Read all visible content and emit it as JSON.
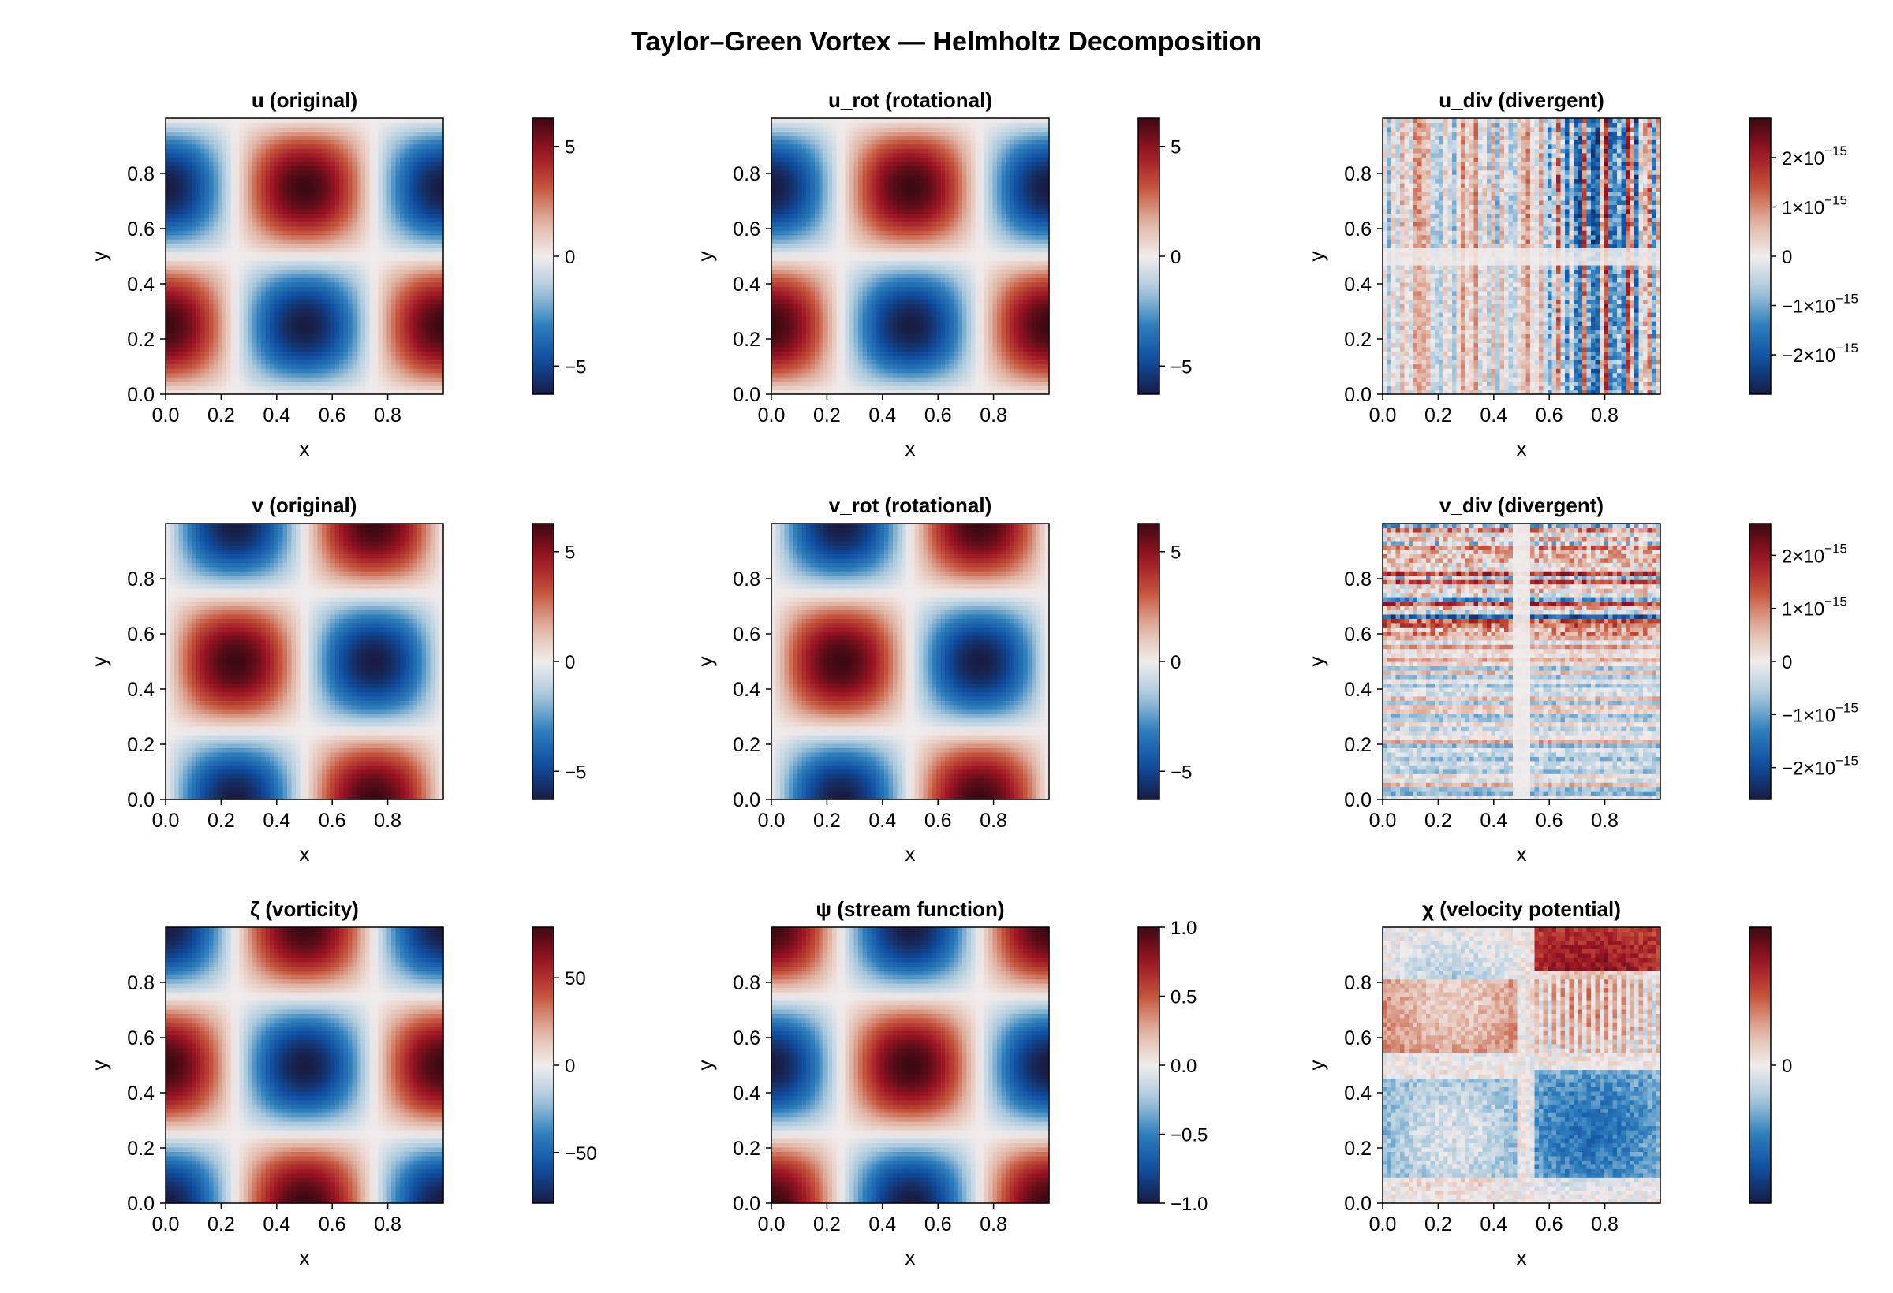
{
  "title": "Taylor–Green Vortex — Helmholtz Decomposition",
  "colormap": {
    "name": "balance",
    "stops": [
      "#181c43",
      "#0f4ea0",
      "#2f7fbd",
      "#a8c8dc",
      "#f1ecec",
      "#e0b2a1",
      "#c5543c",
      "#9c1424",
      "#3c0912"
    ]
  },
  "chart_data": [
    {
      "type": "heatmap",
      "id": "u",
      "title": "u (original)",
      "xlabel": "x",
      "ylabel": "y",
      "x_ticks": [
        "0.0",
        "0.2",
        "0.4",
        "0.6",
        "0.8"
      ],
      "y_ticks": [
        "0.0",
        "0.2",
        "0.4",
        "0.6",
        "0.8"
      ],
      "xlim": [
        0,
        1
      ],
      "ylim": [
        0,
        1
      ],
      "grid": [
        64,
        64
      ],
      "field": "2*pi*cos(2*pi*x)*sin(2*pi*y)",
      "clim": [
        -6.2832,
        6.2832
      ],
      "colorbar": {
        "ticks": [
          -5,
          0,
          5
        ],
        "labels": [
          "−5",
          "0",
          "5"
        ]
      }
    },
    {
      "type": "heatmap",
      "id": "u_rot",
      "title": "u_rot (rotational)",
      "xlabel": "x",
      "ylabel": "y",
      "x_ticks": [
        "0.0",
        "0.2",
        "0.4",
        "0.6",
        "0.8"
      ],
      "y_ticks": [
        "0.0",
        "0.2",
        "0.4",
        "0.6",
        "0.8"
      ],
      "xlim": [
        0,
        1
      ],
      "ylim": [
        0,
        1
      ],
      "grid": [
        64,
        64
      ],
      "field": "2*pi*cos(2*pi*x)*sin(2*pi*y)",
      "clim": [
        -6.2832,
        6.2832
      ],
      "colorbar": {
        "ticks": [
          -5,
          0,
          5
        ],
        "labels": [
          "−5",
          "0",
          "5"
        ]
      }
    },
    {
      "type": "heatmap",
      "id": "u_div",
      "title": "u_div (divergent)",
      "xlabel": "x",
      "ylabel": "y",
      "x_ticks": [
        "0.0",
        "0.2",
        "0.4",
        "0.6",
        "0.8"
      ],
      "y_ticks": [
        "0.0",
        "0.2",
        "0.4",
        "0.6",
        "0.8"
      ],
      "xlim": [
        0,
        1
      ],
      "ylim": [
        0,
        1
      ],
      "grid": [
        64,
        64
      ],
      "field": "round-off noise ~1e-15, vertical streaks, denser for x > 0.6",
      "clim": [
        -2.8e-15,
        2.8e-15
      ],
      "colorbar": {
        "ticks": [
          -2e-15,
          -1e-15,
          0,
          1e-15,
          2e-15
        ],
        "labels": [
          "−2×10",
          "−1×10",
          "0",
          "1×10",
          "2×10"
        ],
        "exponents": [
          "−15",
          "−15",
          "",
          "−15",
          "−15"
        ]
      }
    },
    {
      "type": "heatmap",
      "id": "v",
      "title": "v (original)",
      "xlabel": "x",
      "ylabel": "y",
      "x_ticks": [
        "0.0",
        "0.2",
        "0.4",
        "0.6",
        "0.8"
      ],
      "y_ticks": [
        "0.0",
        "0.2",
        "0.4",
        "0.6",
        "0.8"
      ],
      "xlim": [
        0,
        1
      ],
      "ylim": [
        0,
        1
      ],
      "grid": [
        64,
        64
      ],
      "field": "-2*pi*sin(2*pi*x)*cos(2*pi*y)",
      "clim": [
        -6.2832,
        6.2832
      ],
      "colorbar": {
        "ticks": [
          -5,
          0,
          5
        ],
        "labels": [
          "−5",
          "0",
          "5"
        ]
      }
    },
    {
      "type": "heatmap",
      "id": "v_rot",
      "title": "v_rot (rotational)",
      "xlabel": "x",
      "ylabel": "y",
      "x_ticks": [
        "0.0",
        "0.2",
        "0.4",
        "0.6",
        "0.8"
      ],
      "y_ticks": [
        "0.0",
        "0.2",
        "0.4",
        "0.6",
        "0.8"
      ],
      "xlim": [
        0,
        1
      ],
      "ylim": [
        0,
        1
      ],
      "grid": [
        64,
        64
      ],
      "field": "-2*pi*sin(2*pi*x)*cos(2*pi*y)",
      "clim": [
        -6.2832,
        6.2832
      ],
      "colorbar": {
        "ticks": [
          -5,
          0,
          5
        ],
        "labels": [
          "−5",
          "0",
          "5"
        ]
      }
    },
    {
      "type": "heatmap",
      "id": "v_div",
      "title": "v_div (divergent)",
      "xlabel": "x",
      "ylabel": "y",
      "x_ticks": [
        "0.0",
        "0.2",
        "0.4",
        "0.6",
        "0.8"
      ],
      "y_ticks": [
        "0.0",
        "0.2",
        "0.4",
        "0.6",
        "0.8"
      ],
      "xlim": [
        0,
        1
      ],
      "ylim": [
        0,
        1
      ],
      "grid": [
        64,
        64
      ],
      "field": "round-off noise ~1e-15, horizontal streaks, strongest for y > 0.6",
      "clim": [
        -2.6e-15,
        2.6e-15
      ],
      "colorbar": {
        "ticks": [
          -2e-15,
          -1e-15,
          0,
          1e-15,
          2e-15
        ],
        "labels": [
          "−2×10",
          "−1×10",
          "0",
          "1×10",
          "2×10"
        ],
        "exponents": [
          "−15",
          "−15",
          "",
          "−15",
          "−15"
        ]
      }
    },
    {
      "type": "heatmap",
      "id": "zeta",
      "title": "ζ (vorticity)",
      "xlabel": "x",
      "ylabel": "y",
      "x_ticks": [
        "0.0",
        "0.2",
        "0.4",
        "0.6",
        "0.8"
      ],
      "y_ticks": [
        "0.0",
        "0.2",
        "0.4",
        "0.6",
        "0.8"
      ],
      "xlim": [
        0,
        1
      ],
      "ylim": [
        0,
        1
      ],
      "grid": [
        64,
        64
      ],
      "field": "-8*pi^2*cos(2*pi*x)*cos(2*pi*y)",
      "clim": [
        -78.96,
        78.96
      ],
      "colorbar": {
        "ticks": [
          -50,
          0,
          50
        ],
        "labels": [
          "−50",
          "0",
          "50"
        ]
      }
    },
    {
      "type": "heatmap",
      "id": "psi",
      "title": "ψ (stream function)",
      "xlabel": "x",
      "ylabel": "y",
      "x_ticks": [
        "0.0",
        "0.2",
        "0.4",
        "0.6",
        "0.8"
      ],
      "y_ticks": [
        "0.0",
        "0.2",
        "0.4",
        "0.6",
        "0.8"
      ],
      "xlim": [
        0,
        1
      ],
      "ylim": [
        0,
        1
      ],
      "grid": [
        64,
        64
      ],
      "field": "cos(2*pi*x)*cos(2*pi*y)",
      "clim": [
        -1,
        1
      ],
      "colorbar": {
        "ticks": [
          -1,
          -0.5,
          0,
          0.5,
          1
        ],
        "labels": [
          "−1.0",
          "−0.5",
          "0.0",
          "0.5",
          "1.0"
        ]
      }
    },
    {
      "type": "heatmap",
      "id": "chi",
      "title": "χ (velocity potential)",
      "xlabel": "x",
      "ylabel": "y",
      "x_ticks": [
        "0.0",
        "0.2",
        "0.4",
        "0.6",
        "0.8"
      ],
      "y_ticks": [
        "0.0",
        "0.2",
        "0.4",
        "0.6",
        "0.8"
      ],
      "xlim": [
        0,
        1
      ],
      "ylim": [
        0,
        1
      ],
      "grid": [
        64,
        64
      ],
      "field": "near-zero noise, checkered quadrant blocks (red top-left, blue bottom-left/bottom-right)",
      "clim": [
        -1,
        1
      ],
      "colorbar": {
        "ticks": [
          0
        ],
        "labels": [
          "0"
        ]
      }
    }
  ]
}
